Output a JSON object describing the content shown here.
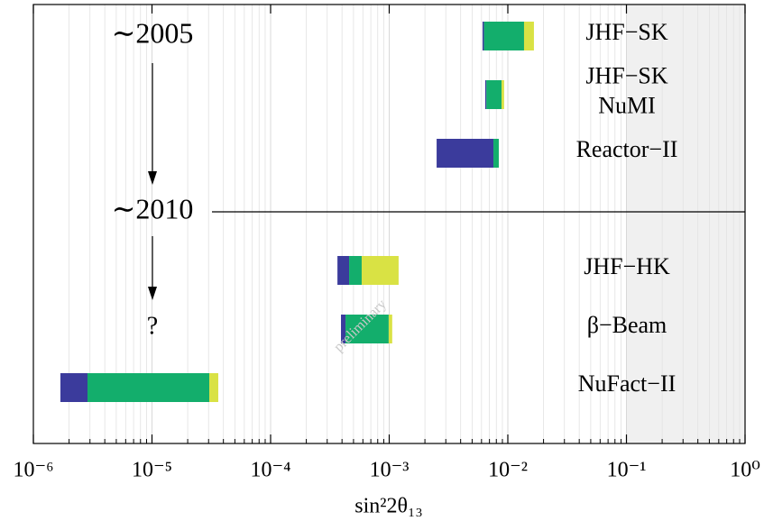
{
  "chart_data": {
    "type": "floating-bar",
    "xlabel": "sin²2θ₁₃",
    "log_x": true,
    "minor_grid": true,
    "xlim": [
      1e-06,
      1
    ],
    "xticks": [
      {
        "value": 1e-06,
        "label": "10⁻⁶"
      },
      {
        "value": 1e-05,
        "label": "10⁻⁵"
      },
      {
        "value": 0.0001,
        "label": "10⁻⁴"
      },
      {
        "value": 0.001,
        "label": "10⁻³"
      },
      {
        "value": 0.01,
        "label": "10⁻²"
      },
      {
        "value": 0.1,
        "label": "10⁻¹"
      },
      {
        "value": 1,
        "label": "10⁰"
      }
    ],
    "shaded_region": [
      0.1,
      1
    ],
    "segment_colors": [
      "#3b3b9c",
      "#13ae6c",
      "#d9e244"
    ],
    "categories": [
      [
        "JHF−SK"
      ],
      [
        "JHF−SK",
        "NuMI"
      ],
      [
        "Reactor−II"
      ],
      [
        "JHF−HK"
      ],
      [
        "β−Beam"
      ],
      [
        "NuFact−II"
      ]
    ],
    "limits": [
      [
        0.00612,
        0.0063,
        0.0137,
        0.0166
      ],
      [
        0.00645,
        0.0066,
        0.00885,
        0.0093
      ],
      [
        0.00251,
        0.00756,
        0.00839,
        0.00839
      ],
      [
        0.000366,
        0.000459,
        0.000586,
        0.0012
      ],
      [
        0.000392,
        0.000428,
        0.00099,
        0.00106
      ],
      [
        1.69e-06,
        2.86e-06,
        3.04e-05,
        3.62e-05
      ]
    ],
    "annotations": [
      "∼2005",
      "∼2010",
      "?",
      "preliminary"
    ]
  }
}
